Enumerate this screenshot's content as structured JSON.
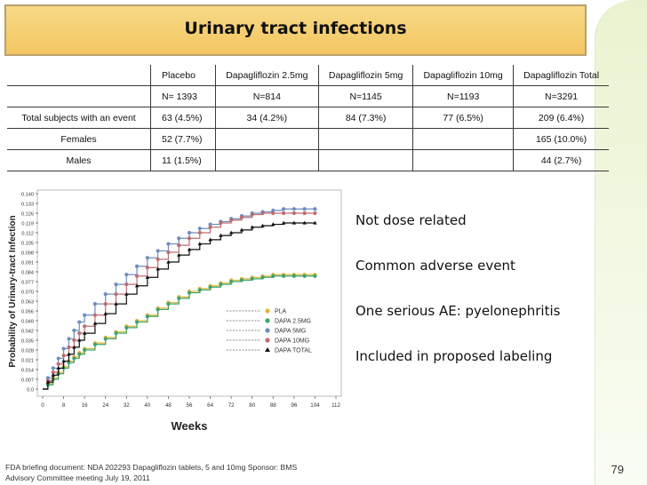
{
  "slide": {
    "title": "Urinary tract infections",
    "page_number": "79",
    "footer": {
      "line1": "FDA briefing document: NDA 202293 Dapagliflozin tablets, 5 and 10mg Sponsor: BMS",
      "line2": "Advisory Committee meeting July 19, 2011"
    }
  },
  "table": {
    "rows": [
      [
        "",
        "Placebo",
        "Dapagliflozin 2.5mg",
        "Dapagliflozin 5mg",
        "Dapagliflozin 10mg",
        "Dapagliflozin Total"
      ],
      [
        "",
        "N= 1393",
        "N=814",
        "N=1145",
        "N=1193",
        "N=3291"
      ],
      [
        "Total subjects with an event",
        "63 (4.5%)",
        "34 (4.2%)",
        "84 (7.3%)",
        "77 (6.5%)",
        "209 (6.4%)"
      ],
      [
        "Females",
        "52 (7.7%)",
        "",
        "",
        "",
        "165 (10.0%)"
      ],
      [
        "Males",
        "11 (1.5%)",
        "",
        "",
        "",
        "44 (2.7%)"
      ]
    ],
    "cell_align": [
      [
        "center",
        "left",
        "center",
        "center",
        "center",
        "center"
      ],
      [
        "center",
        "left",
        "center",
        "center",
        "center",
        "center"
      ],
      [
        "center",
        "left",
        "center",
        "center",
        "center",
        "center"
      ],
      [
        "center",
        "left",
        "center",
        "center",
        "center",
        "center"
      ],
      [
        "center",
        "left",
        "center",
        "center",
        "center",
        "center"
      ]
    ]
  },
  "bullets": [
    "Not dose related",
    "Common adverse event",
    "One serious AE: pyelonephritis",
    "Included in proposed labeling"
  ],
  "chart_data": {
    "type": "line",
    "title": "",
    "xlabel": "Weeks",
    "ylabel": "Probability of Urinary-tract Infection",
    "xlim": [
      0,
      112
    ],
    "ylim": [
      0,
      0.14
    ],
    "x_ticks": [
      "0",
      "8",
      "16",
      "24",
      "32",
      "40",
      "48",
      "56",
      "64",
      "72",
      "80",
      "88",
      "96",
      "104",
      "112"
    ],
    "y_ticks": [
      "0.0",
      "0.007",
      "0.014",
      "0.021",
      "0.028",
      "0.035",
      "0.042",
      "0.049",
      "0.056",
      "0.063",
      "0.070",
      "0.077",
      "0.084",
      "0.091",
      "0.098",
      "0.105",
      "0.112",
      "0.119",
      "0.126",
      "0.133",
      "0.140"
    ],
    "legend_position": "bottom-right",
    "series": [
      {
        "name": "PLA",
        "color": "#e3b63c",
        "dash": "",
        "marker": "circle",
        "x": [
          0,
          2,
          4,
          6,
          8,
          10,
          12,
          14,
          16,
          20,
          24,
          28,
          32,
          36,
          40,
          44,
          48,
          52,
          56,
          60,
          64,
          68,
          72,
          76,
          80,
          84,
          88,
          92,
          96,
          100,
          104
        ],
        "y": [
          0,
          0.004,
          0.008,
          0.012,
          0.016,
          0.02,
          0.023,
          0.026,
          0.029,
          0.033,
          0.037,
          0.041,
          0.045,
          0.049,
          0.053,
          0.058,
          0.062,
          0.066,
          0.07,
          0.072,
          0.074,
          0.076,
          0.078,
          0.079,
          0.08,
          0.081,
          0.082,
          0.082,
          0.082,
          0.082,
          0.082
        ]
      },
      {
        "name": "DAPA 2.5MG",
        "color": "#3ea36b",
        "dash": "",
        "marker": "circle",
        "x": [
          0,
          2,
          4,
          6,
          8,
          10,
          12,
          14,
          16,
          20,
          24,
          28,
          32,
          36,
          40,
          44,
          48,
          52,
          56,
          60,
          64,
          68,
          72,
          76,
          80,
          84,
          88,
          92,
          96,
          100,
          104
        ],
        "y": [
          0,
          0.003,
          0.007,
          0.011,
          0.015,
          0.019,
          0.022,
          0.025,
          0.028,
          0.032,
          0.036,
          0.04,
          0.044,
          0.048,
          0.052,
          0.057,
          0.061,
          0.065,
          0.069,
          0.071,
          0.073,
          0.075,
          0.077,
          0.078,
          0.079,
          0.08,
          0.081,
          0.081,
          0.081,
          0.081,
          0.081
        ]
      },
      {
        "name": "DAPA 5MG",
        "color": "#6d8dbf",
        "dash": "",
        "marker": "circle",
        "x": [
          0,
          2,
          4,
          6,
          8,
          10,
          12,
          14,
          16,
          20,
          24,
          28,
          32,
          36,
          40,
          44,
          48,
          52,
          56,
          60,
          64,
          68,
          72,
          76,
          80,
          84,
          88,
          92,
          96,
          100,
          104
        ],
        "y": [
          0,
          0.008,
          0.015,
          0.022,
          0.029,
          0.036,
          0.042,
          0.048,
          0.053,
          0.061,
          0.068,
          0.075,
          0.082,
          0.088,
          0.094,
          0.099,
          0.104,
          0.108,
          0.112,
          0.115,
          0.118,
          0.12,
          0.122,
          0.124,
          0.126,
          0.127,
          0.128,
          0.129,
          0.129,
          0.129,
          0.129
        ]
      },
      {
        "name": "DAPA 10MG",
        "color": "#bf6b72",
        "dash": "",
        "marker": "circle",
        "x": [
          0,
          2,
          4,
          6,
          8,
          10,
          12,
          14,
          16,
          20,
          24,
          28,
          32,
          36,
          40,
          44,
          48,
          52,
          56,
          60,
          64,
          68,
          72,
          76,
          80,
          84,
          88,
          92,
          96,
          100,
          104
        ],
        "y": [
          0,
          0.006,
          0.012,
          0.018,
          0.024,
          0.03,
          0.035,
          0.04,
          0.045,
          0.053,
          0.061,
          0.068,
          0.075,
          0.081,
          0.087,
          0.093,
          0.098,
          0.103,
          0.108,
          0.112,
          0.116,
          0.119,
          0.121,
          0.123,
          0.125,
          0.126,
          0.126,
          0.126,
          0.126,
          0.126,
          0.126
        ]
      },
      {
        "name": "DAPA TOTAL",
        "color": "#111111",
        "dash": "",
        "marker": "triangle",
        "x": [
          0,
          2,
          4,
          6,
          8,
          10,
          12,
          14,
          16,
          20,
          24,
          28,
          32,
          36,
          40,
          44,
          48,
          52,
          56,
          60,
          64,
          68,
          72,
          76,
          80,
          84,
          88,
          92,
          96,
          100,
          104
        ],
        "y": [
          0,
          0.005,
          0.01,
          0.015,
          0.02,
          0.025,
          0.03,
          0.035,
          0.04,
          0.047,
          0.054,
          0.061,
          0.068,
          0.074,
          0.08,
          0.086,
          0.091,
          0.096,
          0.1,
          0.104,
          0.107,
          0.11,
          0.112,
          0.114,
          0.116,
          0.117,
          0.118,
          0.119,
          0.119,
          0.119,
          0.119
        ]
      }
    ]
  }
}
